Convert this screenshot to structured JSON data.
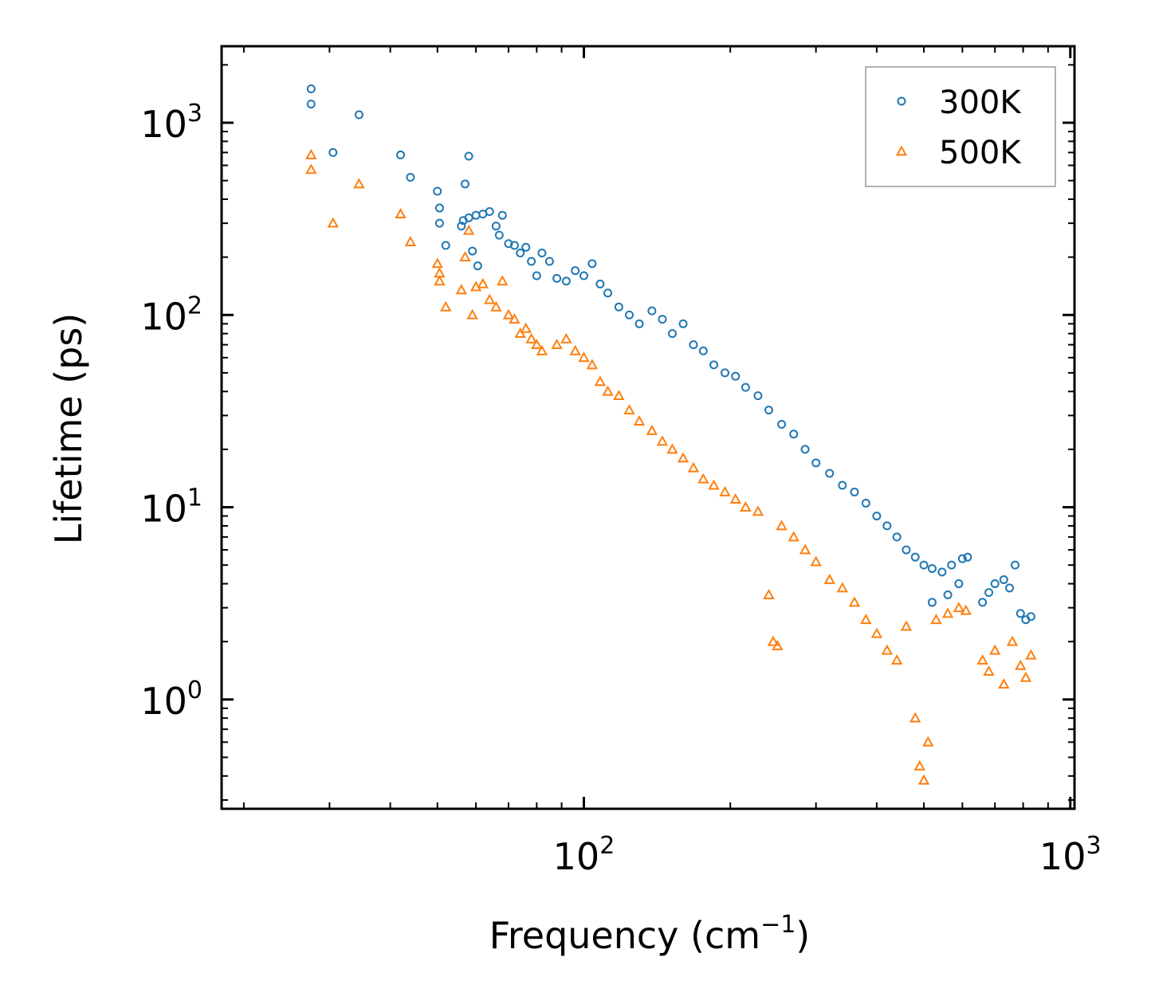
{
  "chart_data": {
    "type": "scatter",
    "title": "",
    "xlabel": {
      "text": "Frequency (cm",
      "sup": "−1",
      "tail": ")"
    },
    "ylabel": "Lifetime (ps)",
    "xscale": "log",
    "yscale": "log",
    "xlim": [
      18,
      1020
    ],
    "ylim": [
      0.27,
      2500
    ],
    "x_ticks": [
      {
        "value": 100,
        "base": "10",
        "exp": "2"
      },
      {
        "value": 1000,
        "base": "10",
        "exp": "3"
      }
    ],
    "y_ticks": [
      {
        "value": 1,
        "base": "10",
        "exp": "0"
      },
      {
        "value": 10,
        "base": "10",
        "exp": "1"
      },
      {
        "value": 100,
        "base": "10",
        "exp": "2"
      },
      {
        "value": 1000,
        "base": "10",
        "exp": "3"
      }
    ],
    "grid": false,
    "legend_position": "top-right",
    "series": [
      {
        "name": "300K",
        "marker": "circle",
        "color": "#1f77b4",
        "points": [
          [
            27.5,
            1500
          ],
          [
            27.5,
            1250
          ],
          [
            30.5,
            700
          ],
          [
            34.5,
            1100
          ],
          [
            42,
            680
          ],
          [
            44,
            520
          ],
          [
            50,
            440
          ],
          [
            50.5,
            360
          ],
          [
            50.5,
            300
          ],
          [
            52,
            230
          ],
          [
            56,
            290
          ],
          [
            56.5,
            310
          ],
          [
            57,
            480
          ],
          [
            58,
            670
          ],
          [
            58,
            320
          ],
          [
            59,
            215
          ],
          [
            60,
            330
          ],
          [
            60.5,
            180
          ],
          [
            62,
            335
          ],
          [
            64,
            345
          ],
          [
            66,
            290
          ],
          [
            67,
            260
          ],
          [
            68,
            330
          ],
          [
            70,
            235
          ],
          [
            72,
            230
          ],
          [
            74,
            210
          ],
          [
            76,
            225
          ],
          [
            78,
            190
          ],
          [
            80,
            160
          ],
          [
            82,
            210
          ],
          [
            85,
            190
          ],
          [
            88,
            155
          ],
          [
            92,
            150
          ],
          [
            96,
            170
          ],
          [
            100,
            160
          ],
          [
            104,
            185
          ],
          [
            108,
            145
          ],
          [
            112,
            130
          ],
          [
            118,
            110
          ],
          [
            124,
            100
          ],
          [
            130,
            90
          ],
          [
            138,
            105
          ],
          [
            145,
            95
          ],
          [
            152,
            80
          ],
          [
            160,
            90
          ],
          [
            168,
            70
          ],
          [
            176,
            65
          ],
          [
            185,
            55
          ],
          [
            195,
            50
          ],
          [
            205,
            48
          ],
          [
            215,
            42
          ],
          [
            228,
            38
          ],
          [
            240,
            32
          ],
          [
            255,
            27
          ],
          [
            270,
            24
          ],
          [
            285,
            20
          ],
          [
            300,
            17
          ],
          [
            320,
            15
          ],
          [
            340,
            13
          ],
          [
            360,
            12
          ],
          [
            380,
            10.5
          ],
          [
            400,
            9
          ],
          [
            420,
            8
          ],
          [
            440,
            7
          ],
          [
            460,
            6
          ],
          [
            480,
            5.5
          ],
          [
            500,
            5
          ],
          [
            520,
            4.8
          ],
          [
            545,
            4.6
          ],
          [
            570,
            5
          ],
          [
            600,
            5.4
          ],
          [
            615,
            5.5
          ],
          [
            520,
            3.2
          ],
          [
            560,
            3.5
          ],
          [
            590,
            4.0
          ],
          [
            660,
            3.2
          ],
          [
            680,
            3.6
          ],
          [
            700,
            4.0
          ],
          [
            730,
            4.2
          ],
          [
            750,
            3.8
          ],
          [
            770,
            5.0
          ],
          [
            790,
            2.8
          ],
          [
            810,
            2.6
          ],
          [
            830,
            2.7
          ]
        ]
      },
      {
        "name": "500K",
        "marker": "triangle",
        "color": "#ff7f0e",
        "points": [
          [
            27.5,
            680
          ],
          [
            27.5,
            570
          ],
          [
            30.5,
            300
          ],
          [
            34.5,
            480
          ],
          [
            42,
            335
          ],
          [
            44,
            240
          ],
          [
            50,
            185
          ],
          [
            50.5,
            165
          ],
          [
            50.5,
            150
          ],
          [
            52,
            110
          ],
          [
            56,
            135
          ],
          [
            57,
            200
          ],
          [
            58,
            275
          ],
          [
            59,
            100
          ],
          [
            60,
            140
          ],
          [
            62,
            145
          ],
          [
            64,
            120
          ],
          [
            66,
            110
          ],
          [
            68,
            150
          ],
          [
            70,
            100
          ],
          [
            72,
            95
          ],
          [
            74,
            80
          ],
          [
            76,
            85
          ],
          [
            78,
            75
          ],
          [
            80,
            70
          ],
          [
            82,
            65
          ],
          [
            88,
            70
          ],
          [
            92,
            75
          ],
          [
            96,
            65
          ],
          [
            100,
            60
          ],
          [
            104,
            55
          ],
          [
            108,
            45
          ],
          [
            112,
            40
          ],
          [
            118,
            38
          ],
          [
            124,
            32
          ],
          [
            130,
            28
          ],
          [
            138,
            25
          ],
          [
            145,
            22
          ],
          [
            152,
            20
          ],
          [
            160,
            18
          ],
          [
            168,
            16
          ],
          [
            176,
            14
          ],
          [
            185,
            13
          ],
          [
            195,
            12
          ],
          [
            205,
            11
          ],
          [
            215,
            10
          ],
          [
            228,
            9.5
          ],
          [
            240,
            3.5
          ],
          [
            245,
            2.0
          ],
          [
            250,
            1.9
          ],
          [
            255,
            8
          ],
          [
            270,
            7
          ],
          [
            285,
            6
          ],
          [
            300,
            5.2
          ],
          [
            320,
            4.2
          ],
          [
            340,
            3.8
          ],
          [
            360,
            3.2
          ],
          [
            380,
            2.6
          ],
          [
            400,
            2.2
          ],
          [
            420,
            1.8
          ],
          [
            440,
            1.6
          ],
          [
            460,
            2.4
          ],
          [
            480,
            0.8
          ],
          [
            490,
            0.45
          ],
          [
            500,
            0.38
          ],
          [
            510,
            0.6
          ],
          [
            530,
            2.6
          ],
          [
            560,
            2.8
          ],
          [
            590,
            3.0
          ],
          [
            610,
            2.9
          ],
          [
            660,
            1.6
          ],
          [
            680,
            1.4
          ],
          [
            700,
            1.8
          ],
          [
            730,
            1.2
          ],
          [
            760,
            2.0
          ],
          [
            790,
            1.5
          ],
          [
            810,
            1.3
          ],
          [
            830,
            1.7
          ]
        ]
      }
    ]
  }
}
